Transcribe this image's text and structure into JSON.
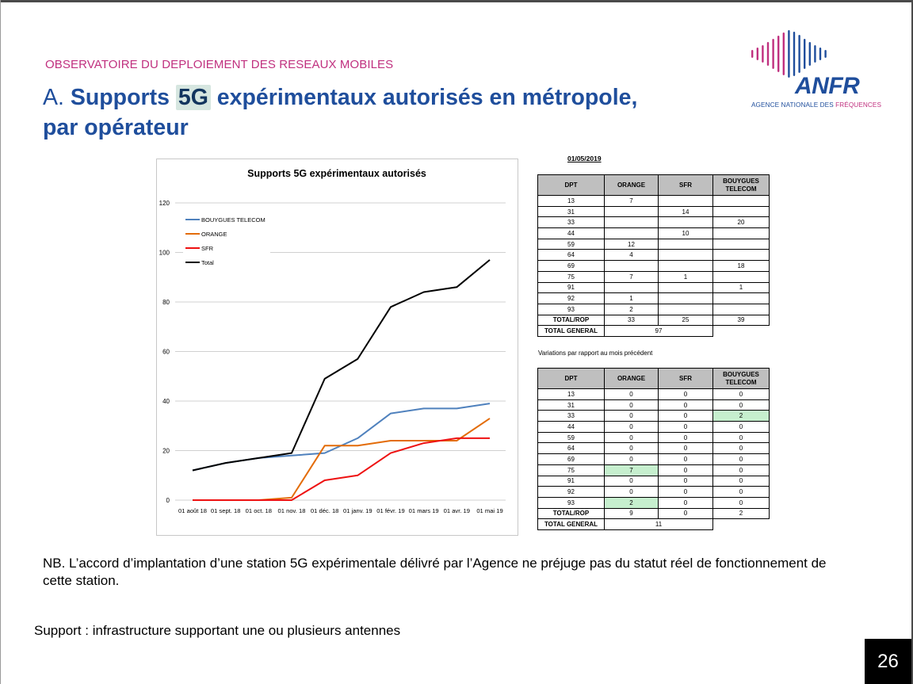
{
  "header": {
    "kicker": "OBSERVATOIRE DU DEPLOIEMENT DES RESEAUX MOBILES",
    "title_prefix": "A. ",
    "title_bold_1": "Supports ",
    "title_highlight": "5G",
    "title_bold_2": " expérimentaux autorisés en métropole,",
    "title_line2": "par opérateur"
  },
  "logo": {
    "word": "ANFR",
    "sub_main": "AGENCE NATIONALE DES ",
    "sub_accent": "FRÉQUENCES",
    "colors": {
      "blue": "#1f4e9c",
      "pink": "#c0307f"
    }
  },
  "chart_data": {
    "type": "line",
    "title": "Supports 5G expérimentaux autorisés",
    "xlabel": "",
    "ylabel": "",
    "ylim": [
      0,
      120
    ],
    "yticks": [
      0,
      20,
      40,
      60,
      80,
      100,
      120
    ],
    "categories": [
      "01 août 18",
      "01 sept. 18",
      "01 oct. 18",
      "01 nov. 18",
      "01 déc. 18",
      "01 janv. 19",
      "01 févr. 19",
      "01 mars 19",
      "01 avr. 19",
      "01 mai 19"
    ],
    "legend_position": "top-left",
    "grid": true,
    "series": [
      {
        "name": "BOUYGUES TELECOM",
        "color": "#4f81bd",
        "values": [
          12,
          15,
          17,
          18,
          19,
          25,
          35,
          37,
          37,
          39
        ]
      },
      {
        "name": "ORANGE",
        "color": "#e36c09",
        "values": [
          0,
          0,
          0,
          1,
          22,
          22,
          24,
          24,
          24,
          33
        ]
      },
      {
        "name": "SFR",
        "color": "#ee1111",
        "values": [
          0,
          0,
          0,
          0,
          8,
          10,
          19,
          23,
          25,
          25
        ]
      },
      {
        "name": "Total",
        "color": "#000000",
        "values": [
          12,
          15,
          17,
          19,
          49,
          57,
          78,
          84,
          86,
          97
        ]
      }
    ]
  },
  "table1": {
    "date": "01/05/2019",
    "headers": [
      "DPT",
      "ORANGE",
      "SFR",
      "BOUYGUES TELECOM"
    ],
    "rows": [
      [
        "13",
        "7",
        "",
        ""
      ],
      [
        "31",
        "",
        "14",
        ""
      ],
      [
        "33",
        "",
        "",
        "20"
      ],
      [
        "44",
        "",
        "10",
        ""
      ],
      [
        "59",
        "12",
        "",
        ""
      ],
      [
        "64",
        "4",
        "",
        ""
      ],
      [
        "69",
        "",
        "",
        "18"
      ],
      [
        "75",
        "7",
        "1",
        ""
      ],
      [
        "91",
        "",
        "",
        "1"
      ],
      [
        "92",
        "1",
        "",
        ""
      ],
      [
        "93",
        "2",
        "",
        ""
      ]
    ],
    "total_rop_label": "TOTAL/ROP",
    "total_rop": [
      "33",
      "25",
      "39"
    ],
    "total_general_label": "TOTAL GENERAL",
    "total_general": "97"
  },
  "table2": {
    "caption": "Variations par rapport au mois précédent",
    "headers": [
      "DPT",
      "ORANGE",
      "SFR",
      "BOUYGUES TELECOM"
    ],
    "rows": [
      [
        "13",
        "0",
        "0",
        "0"
      ],
      [
        "31",
        "0",
        "0",
        "0"
      ],
      [
        "33",
        "0",
        "0",
        "2"
      ],
      [
        "44",
        "0",
        "0",
        "0"
      ],
      [
        "59",
        "0",
        "0",
        "0"
      ],
      [
        "64",
        "0",
        "0",
        "0"
      ],
      [
        "69",
        "0",
        "0",
        "0"
      ],
      [
        "75",
        "7",
        "0",
        "0"
      ],
      [
        "91",
        "0",
        "0",
        "0"
      ],
      [
        "92",
        "0",
        "0",
        "0"
      ],
      [
        "93",
        "2",
        "0",
        "0"
      ]
    ],
    "highlight_color": "#c6efce",
    "total_rop_label": "TOTAL/ROP",
    "total_rop": [
      "9",
      "0",
      "2"
    ],
    "total_general_label": "TOTAL GENERAL",
    "total_general": "11"
  },
  "footer": {
    "nb": "NB. L’accord d’implantation d’une station 5G expérimentale délivré par l’Agence ne préjuge pas du statut réel de fonctionnement de cette station.",
    "support": "Support : infrastructure supportant une ou plusieurs antennes",
    "page_number": "26"
  }
}
